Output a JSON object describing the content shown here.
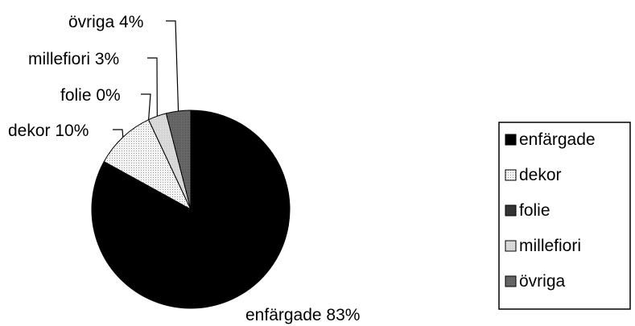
{
  "chart_data": {
    "type": "pie",
    "categories": [
      "enfärgade",
      "dekor",
      "folie",
      "millefiori",
      "övriga"
    ],
    "values": [
      83,
      10,
      0,
      3,
      4
    ],
    "data_labels": [
      "enfärgade 83%",
      "dekor 10%",
      "folie 0%",
      "millefiori 3%",
      "övriga 4%"
    ],
    "colors": [
      "#000000",
      "#ffffff",
      "#333333",
      "#cccccc",
      "#666666"
    ],
    "slice_patterns": [
      false,
      true,
      false,
      true,
      true
    ],
    "legend_position": "right",
    "start_angle_deg": 0,
    "direction": "clockwise"
  }
}
